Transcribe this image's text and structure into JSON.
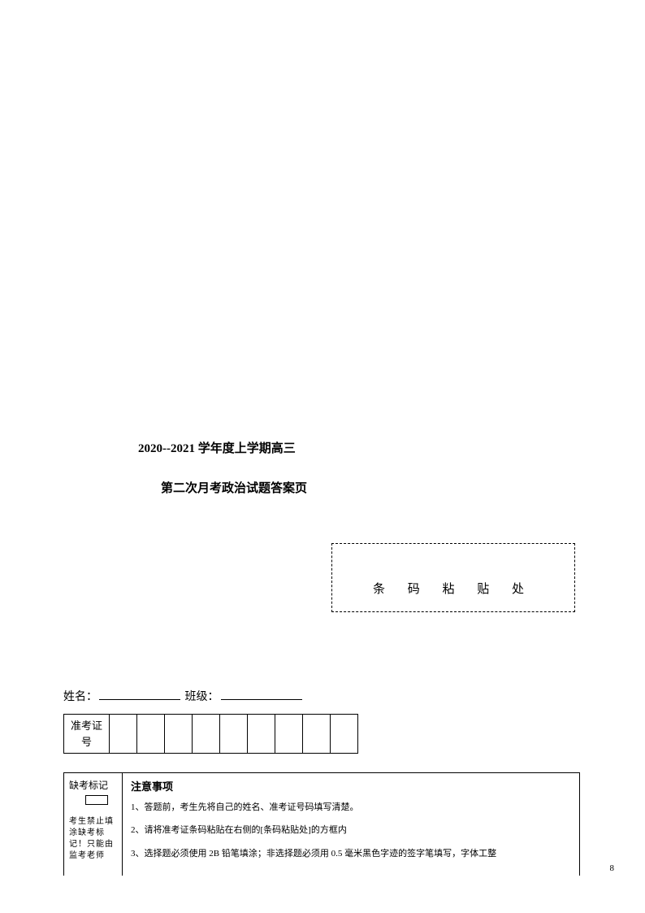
{
  "title": {
    "line1": "2020--2021 学年度上学期高三",
    "line2": "第二次月考政治试题答案页"
  },
  "barcode": {
    "label": "条 码 粘 贴 处"
  },
  "studentInfo": {
    "nameLabel": "姓名：",
    "classLabel": "班级："
  },
  "admission": {
    "label": "准考证号",
    "cellCount": 9
  },
  "absentMark": {
    "title": "缺考标记",
    "note": "考生禁止填涂缺考标记！只能由监考老师"
  },
  "notice": {
    "title": "注意事项",
    "items": [
      "1、答题前，考生先将自己的姓名、准考证号码填写清楚。",
      "2、请将准考证条码粘贴在右侧的[条码粘贴处]的方框内",
      "3、选择题必须使用 2B 铅笔填涂；非选择题必须用 0.5 毫米黑色字迹的签字笔填写，字体工整"
    ]
  },
  "pageNumber": "8"
}
